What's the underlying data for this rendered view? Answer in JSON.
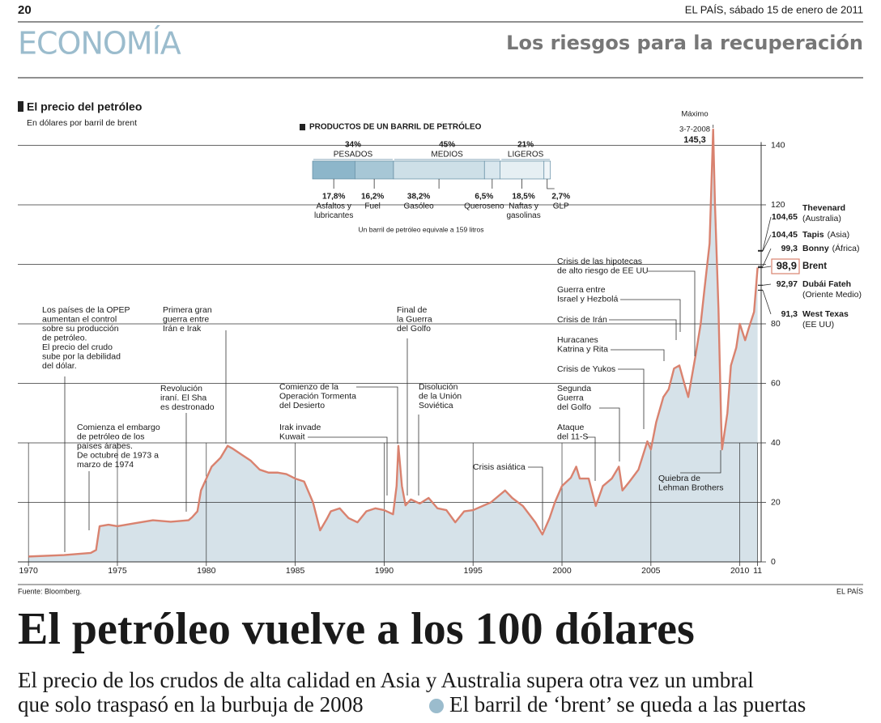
{
  "header": {
    "page_number": "20",
    "paper_date": "EL PAÍS, sábado 15 de enero de 2011",
    "section": "ECONOMÍA",
    "kicker": "Los riesgos para la recuperación"
  },
  "chart_data": {
    "type": "area",
    "title": "El precio del petróleo",
    "subtitle": "En dólares por barril de brent",
    "color": "#d9826f",
    "fill": "#d6e2e9",
    "grid": true,
    "x": [
      1970,
      1972,
      1973.5,
      1973.8,
      1974,
      1974.5,
      1975,
      1976,
      1977,
      1978,
      1979,
      1979.2,
      1979.5,
      1979.7,
      1980,
      1980.3,
      1980.8,
      1981.2,
      1981.5,
      1982,
      1982.5,
      1983,
      1983.5,
      1984,
      1984.5,
      1985,
      1985.5,
      1986,
      1986.4,
      1986.8,
      1987,
      1987.5,
      1988,
      1988.5,
      1989,
      1989.5,
      1990,
      1990.5,
      1990.7,
      1990.8,
      1991,
      1991.2,
      1991.5,
      1992,
      1992.5,
      1993,
      1993.5,
      1994,
      1994.5,
      1995,
      1996,
      1996.8,
      1997.2,
      1997.8,
      1998.5,
      1998.9,
      1999.3,
      1999.6,
      2000,
      2000.5,
      2000.8,
      2001,
      2001.5,
      2001.9,
      2002.3,
      2002.8,
      2003.2,
      2003.4,
      2003.8,
      2004.3,
      2004.8,
      2005,
      2005.3,
      2005.7,
      2006,
      2006.3,
      2006.6,
      2006.9,
      2007.1,
      2007.5,
      2007.8,
      2008,
      2008.3,
      2008.5,
      2008.6,
      2008.8,
      2008.95,
      2009,
      2009.3,
      2009.5,
      2009.8,
      2010,
      2010.3,
      2010.5,
      2010.8,
      2011
    ],
    "values": [
      1.8,
      2.3,
      3,
      4,
      12,
      12.5,
      12,
      13,
      14,
      13.5,
      14,
      15,
      17,
      24,
      28,
      32,
      35,
      39,
      38,
      36,
      34,
      31,
      30,
      30,
      29.5,
      28,
      27,
      20,
      10.6,
      14.7,
      17,
      18,
      14.7,
      13.3,
      17,
      18,
      17.4,
      16,
      25.5,
      39,
      25.5,
      19,
      21,
      19.6,
      21.5,
      18,
      17.4,
      13.3,
      17,
      17.4,
      20,
      24,
      21.5,
      18.8,
      13.3,
      9.2,
      14.7,
      20,
      25.5,
      28.3,
      32,
      28,
      28,
      18.8,
      25.5,
      28,
      32,
      24,
      27,
      31,
      40.5,
      37.8,
      47,
      55.4,
      58,
      65,
      66,
      59.5,
      55.4,
      69,
      80,
      91,
      107,
      145.3,
      120.7,
      85,
      47,
      37.8,
      50,
      66,
      72,
      80,
      74.5,
      78.5,
      84,
      98.9
    ],
    "xlim": [
      1969.4,
      2011.2
    ],
    "ylim": [
      0,
      145.3
    ],
    "xticks": [
      1970,
      1975,
      1980,
      1985,
      1990,
      1995,
      2000,
      2005,
      2010,
      {
        "value": 2011,
        "label": "11"
      }
    ],
    "yticks": [
      0,
      20,
      40,
      60,
      80,
      100,
      120,
      140
    ],
    "max_label": {
      "title": "Máximo",
      "date": "3-7-2008",
      "value": 145.3,
      "value_label": "145,3"
    },
    "annotations": [
      [
        "Los países de la OPEP",
        "aumentan el control",
        "sobre su producción",
        "de petróleo.",
        "El precio del crudo",
        "sube por la debilidad",
        "del dólar."
      ],
      [
        "Comienza el embargo",
        "de petróleo de los",
        "países árabes.",
        "De octubre de 1973 a",
        "marzo de 1974"
      ],
      [
        "Revolución",
        "iraní. El Sha",
        "es destronado"
      ],
      [
        "Primera gran",
        "guerra entre",
        "Irán e Irak"
      ],
      [
        "Comienzo de la",
        "Operación Tormenta",
        "del Desierto"
      ],
      [
        "Irak invade",
        "Kuwait"
      ],
      [
        "Final de",
        "la Guerra",
        "del Golfo"
      ],
      [
        "Disolución",
        "de la Unión",
        "Soviética"
      ],
      [
        "Crisis asiática"
      ],
      [
        "Quiebra de",
        "Lehman Brothers"
      ],
      [
        "Ataque",
        "del 11-S"
      ],
      [
        "Segunda",
        "Guerra",
        "del Golfo"
      ],
      [
        "Crisis de Yukos"
      ],
      [
        "Huracanes",
        "Katrina y Rita"
      ],
      [
        "Crisis de Irán"
      ],
      [
        "Guerra entre",
        "Israel y Hezbolá"
      ],
      [
        "Crisis de las hipotecas",
        "de alto riesgo de EE UU"
      ]
    ],
    "prices": [
      {
        "value": 104.65,
        "value_label": "104,65",
        "name": "Thevenard",
        "region": "(Australia)"
      },
      {
        "value": 104.45,
        "value_label": "104,45",
        "name": "Tapis",
        "region": "(Asia)"
      },
      {
        "value": 99.3,
        "value_label": "99,3",
        "name": "Bonny",
        "region": "(África)"
      },
      {
        "value": 98.9,
        "value_label": "98,9",
        "name": "Brent"
      },
      {
        "value": 92.97,
        "value_label": "92,97",
        "name": "Dubái Fateh",
        "region": "(Oriente Medio)"
      },
      {
        "value": 91.3,
        "value_label": "91,3",
        "name": "West Texas",
        "region": "(EE UU)"
      }
    ],
    "source": "Fuente: Bloomberg.",
    "credit": "EL PAÍS"
  },
  "breakdown": {
    "type": "stacked-bar",
    "title": "PRODUCTOS DE UN BARRIL DE PETRÓLEO",
    "groups": [
      {
        "value": 34,
        "label": "34%",
        "name": "PESADOS"
      },
      {
        "value": 45,
        "label": "45%",
        "name": "MEDIOS"
      },
      {
        "value": 21,
        "label": "21%",
        "name": "LIGEROS"
      }
    ],
    "segments": [
      {
        "value": 17.8,
        "label": "17,8%",
        "name": [
          "Asfaltos y",
          "lubricantes"
        ],
        "color": "#8db6ca"
      },
      {
        "value": 16.2,
        "label": "16,2%",
        "name": [
          "Fuel"
        ],
        "color": "#a7c7d6"
      },
      {
        "value": 38.2,
        "label": "38,2%",
        "name": [
          "Gasóleo"
        ],
        "color": "#cddfe7"
      },
      {
        "value": 6.5,
        "label": "6,5%",
        "name": [
          "Queroseno"
        ],
        "color": "#d9e7ee"
      },
      {
        "value": 18.5,
        "label": "18,5%",
        "name": [
          "Naftas y",
          "gasolinas"
        ],
        "color": "#e6eff3"
      },
      {
        "value": 2.7,
        "label": "2,7%",
        "name": [
          "GLP"
        ],
        "color": "#f0f5f8"
      }
    ],
    "note": "Un barril de petróleo equivale a 159 litros"
  },
  "article": {
    "headline": "El petróleo vuelve a los 100 dólares",
    "subhead": [
      "El precio de los crudos de alta calidad en Asia y Australia supera otra vez un umbral",
      "que solo traspasó en la burbuja de 2008",
      "El barril de ‘brent’ se queda a las puertas"
    ]
  }
}
